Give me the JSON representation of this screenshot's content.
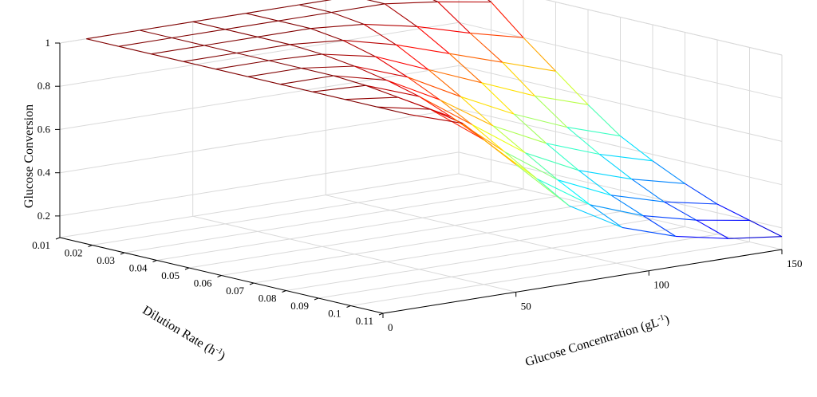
{
  "chart_data": {
    "type": "surface",
    "title": "",
    "xlabel": "Dilution Rate (h",
    "xlabel_sup": "-1",
    "xlabel_end": ")",
    "ylabel": "Glucose Concentration (gL",
    "ylabel_sup": "-1",
    "ylabel_end": ")",
    "zlabel": "Glucose Conversion",
    "x_ticks": [
      "0.01",
      "0.02",
      "0.03",
      "0.04",
      "0.05",
      "0.06",
      "0.07",
      "0.08",
      "0.09",
      "0.1",
      "0.11"
    ],
    "y_ticks": [
      "0",
      "50",
      "100",
      "150"
    ],
    "z_ticks": [
      "0.2",
      "0.4",
      "0.6",
      "0.8",
      "1"
    ],
    "xlim": [
      0.01,
      0.11
    ],
    "ylim": [
      0,
      150
    ],
    "zlim": [
      0.1,
      1
    ],
    "grid": true,
    "colormap": "jet",
    "dilution_rate": [
      0.01,
      0.02,
      0.03,
      0.04,
      0.05,
      0.06,
      0.07,
      0.08,
      0.09,
      0.1,
      0.11
    ],
    "glucose_concentration": [
      10,
      30,
      50,
      70,
      90,
      110,
      130,
      150
    ],
    "conversion": [
      [
        1.0,
        1.0,
        1.0,
        1.0,
        1.0,
        1.0,
        1.0,
        1.0
      ],
      [
        1.0,
        1.0,
        1.0,
        1.0,
        1.0,
        1.0,
        0.97,
        0.93
      ],
      [
        1.0,
        1.0,
        1.0,
        1.0,
        0.98,
        0.93,
        0.86,
        0.8
      ],
      [
        1.0,
        1.0,
        1.0,
        0.98,
        0.92,
        0.84,
        0.76,
        0.68
      ],
      [
        1.0,
        1.0,
        0.99,
        0.94,
        0.84,
        0.74,
        0.64,
        0.56
      ],
      [
        1.0,
        1.0,
        0.97,
        0.88,
        0.75,
        0.63,
        0.53,
        0.45
      ],
      [
        1.0,
        1.0,
        0.94,
        0.81,
        0.65,
        0.53,
        0.44,
        0.37
      ],
      [
        1.0,
        0.99,
        0.9,
        0.73,
        0.56,
        0.44,
        0.36,
        0.3
      ],
      [
        1.0,
        0.97,
        0.84,
        0.64,
        0.47,
        0.36,
        0.29,
        0.24
      ],
      [
        1.0,
        0.95,
        0.77,
        0.55,
        0.39,
        0.3,
        0.24,
        0.2
      ],
      [
        1.0,
        0.92,
        0.69,
        0.46,
        0.32,
        0.24,
        0.19,
        0.16
      ]
    ]
  }
}
